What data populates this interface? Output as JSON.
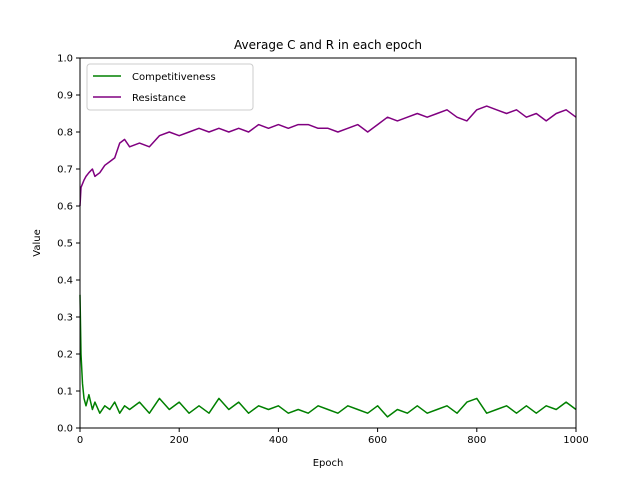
{
  "chart_data": {
    "type": "line",
    "title": "Average C and R in each epoch",
    "xlabel": "Epoch",
    "ylabel": "Value",
    "xlim": [
      0,
      1000
    ],
    "ylim": [
      0.0,
      1.0
    ],
    "xticks": [
      "0",
      "200",
      "400",
      "600",
      "800",
      "1000"
    ],
    "yticks": [
      "0.0",
      "0.1",
      "0.2",
      "0.3",
      "0.4",
      "0.5",
      "0.6",
      "0.7",
      "0.8",
      "0.9",
      "1.0"
    ],
    "grid": false,
    "legend_position": "upper-left",
    "series": [
      {
        "name": "Competitiveness",
        "color": "#008000",
        "x": [
          0,
          2,
          5,
          8,
          12,
          18,
          25,
          30,
          40,
          50,
          60,
          70,
          80,
          90,
          100,
          120,
          140,
          160,
          180,
          200,
          220,
          240,
          260,
          280,
          300,
          320,
          340,
          360,
          380,
          400,
          420,
          440,
          460,
          480,
          500,
          520,
          540,
          560,
          580,
          600,
          620,
          640,
          660,
          680,
          700,
          720,
          740,
          760,
          780,
          800,
          820,
          840,
          860,
          880,
          900,
          920,
          940,
          960,
          980,
          1000
        ],
        "y": [
          0.36,
          0.2,
          0.12,
          0.08,
          0.06,
          0.09,
          0.05,
          0.07,
          0.04,
          0.06,
          0.05,
          0.07,
          0.04,
          0.06,
          0.05,
          0.07,
          0.04,
          0.08,
          0.05,
          0.07,
          0.04,
          0.06,
          0.04,
          0.08,
          0.05,
          0.07,
          0.04,
          0.06,
          0.05,
          0.06,
          0.04,
          0.05,
          0.04,
          0.06,
          0.05,
          0.04,
          0.06,
          0.05,
          0.04,
          0.06,
          0.03,
          0.05,
          0.04,
          0.06,
          0.04,
          0.05,
          0.06,
          0.04,
          0.07,
          0.08,
          0.04,
          0.05,
          0.06,
          0.04,
          0.06,
          0.04,
          0.06,
          0.05,
          0.07,
          0.05
        ]
      },
      {
        "name": "Resistance",
        "color": "#800080",
        "x": [
          0,
          2,
          5,
          8,
          12,
          18,
          25,
          30,
          40,
          50,
          60,
          70,
          80,
          90,
          100,
          120,
          140,
          160,
          180,
          200,
          220,
          240,
          260,
          280,
          300,
          320,
          340,
          360,
          380,
          400,
          420,
          440,
          460,
          480,
          500,
          520,
          540,
          560,
          580,
          600,
          620,
          640,
          660,
          680,
          700,
          720,
          740,
          760,
          780,
          800,
          820,
          840,
          860,
          880,
          900,
          920,
          940,
          960,
          980,
          1000
        ],
        "y": [
          0.6,
          0.65,
          0.66,
          0.67,
          0.68,
          0.69,
          0.7,
          0.68,
          0.69,
          0.71,
          0.72,
          0.73,
          0.77,
          0.78,
          0.76,
          0.77,
          0.76,
          0.79,
          0.8,
          0.79,
          0.8,
          0.81,
          0.8,
          0.81,
          0.8,
          0.81,
          0.8,
          0.82,
          0.81,
          0.82,
          0.81,
          0.82,
          0.82,
          0.81,
          0.81,
          0.8,
          0.81,
          0.82,
          0.8,
          0.82,
          0.84,
          0.83,
          0.84,
          0.85,
          0.84,
          0.85,
          0.86,
          0.84,
          0.83,
          0.86,
          0.87,
          0.86,
          0.85,
          0.86,
          0.84,
          0.85,
          0.83,
          0.85,
          0.86,
          0.84
        ]
      }
    ]
  }
}
